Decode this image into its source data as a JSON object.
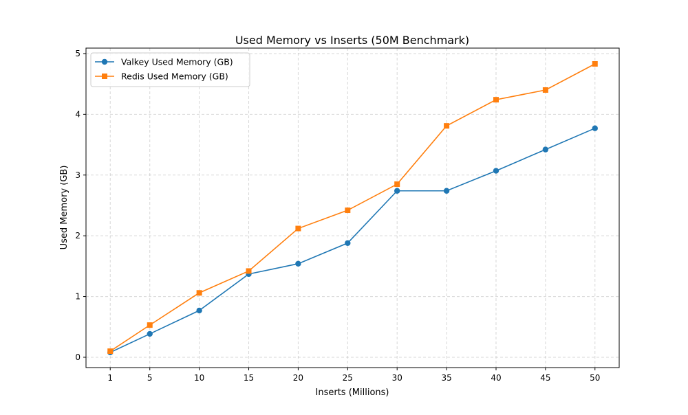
{
  "chart_data": {
    "type": "line",
    "title": "Used Memory vs Inserts (50M Benchmark)",
    "xlabel": "Inserts (Millions)",
    "ylabel": "Used Memory (GB)",
    "x": [
      1,
      5,
      10,
      15,
      20,
      25,
      30,
      35,
      40,
      45,
      50
    ],
    "xticks": [
      "1",
      "5",
      "10",
      "15",
      "20",
      "25",
      "30",
      "35",
      "40",
      "45",
      "50"
    ],
    "yticks": [
      "0",
      "1",
      "2",
      "3",
      "4",
      "5"
    ],
    "xlim": [
      -1.45,
      52.45
    ],
    "ylim": [
      -0.17,
      5.09
    ],
    "grid": true,
    "legend_position": "top-left",
    "series": [
      {
        "name": "Valkey Used Memory (GB)",
        "color": "#1f77b4",
        "marker": "circle",
        "values": [
          0.08,
          0.385,
          0.77,
          1.37,
          1.54,
          1.88,
          2.74,
          2.74,
          3.07,
          3.42,
          3.77
        ]
      },
      {
        "name": "Redis Used Memory (GB)",
        "color": "#ff7f0e",
        "marker": "square",
        "values": [
          0.1,
          0.53,
          1.06,
          1.42,
          2.12,
          2.42,
          2.85,
          3.81,
          4.24,
          4.4,
          4.83
        ]
      }
    ]
  }
}
